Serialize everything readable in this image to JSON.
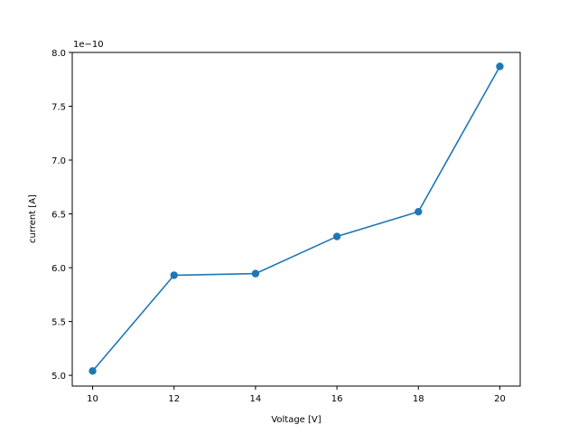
{
  "chart_data": {
    "type": "line",
    "x": [
      10,
      12,
      14,
      16,
      18,
      20
    ],
    "series": [
      {
        "values": [
          5.04,
          5.93,
          5.945,
          6.29,
          6.52,
          7.87
        ],
        "color": "#1f77b4",
        "marker": "circle"
      }
    ],
    "xlabel": "Voltage [V]",
    "ylabel": "current [A]",
    "y_offset_label": "1e−10",
    "xlim": [
      9.5,
      20.5
    ],
    "ylim": [
      4.9,
      8.0
    ],
    "x_ticks": [
      10,
      12,
      14,
      16,
      18,
      20
    ],
    "x_tick_labels": [
      "10",
      "12",
      "14",
      "16",
      "18",
      "20"
    ],
    "y_ticks": [
      5.0,
      5.5,
      6.0,
      6.5,
      7.0,
      7.5,
      8.0
    ],
    "y_tick_labels": [
      "5.0",
      "5.5",
      "6.0",
      "6.5",
      "7.0",
      "7.5",
      "8.0"
    ],
    "grid": false
  }
}
